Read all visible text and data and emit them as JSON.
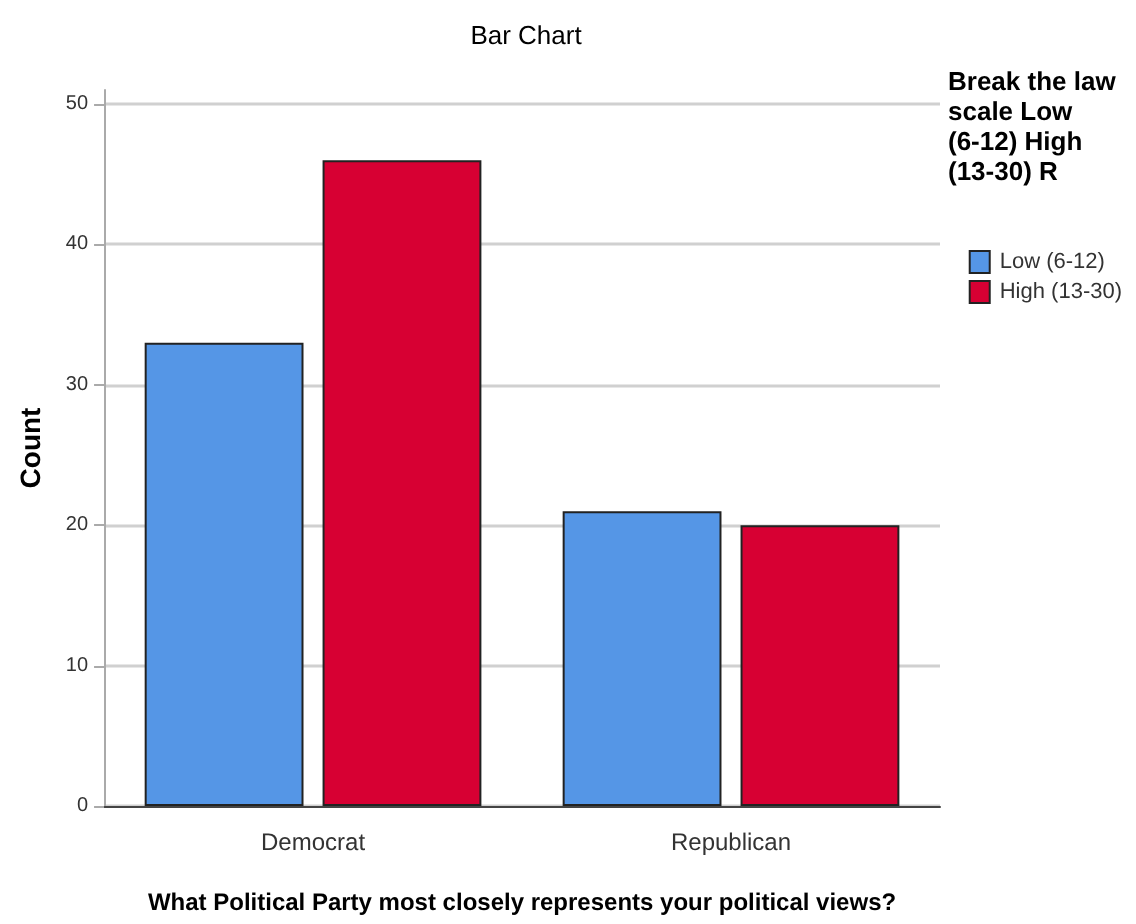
{
  "chart_data": {
    "type": "bar",
    "title": "Bar Chart",
    "xlabel": "What Political Party most closely represents your political views?",
    "ylabel": "Count",
    "legend_title": "Break the law scale Low (6-12) High (13-30) R",
    "categories": [
      "Democrat",
      "Republican"
    ],
    "series": [
      {
        "name": "Low (6-12)",
        "color": "#5596e6",
        "values": [
          33,
          21
        ]
      },
      {
        "name": "High (13-30)",
        "color": "#d70033",
        "values": [
          46,
          20
        ]
      }
    ],
    "ylim": [
      0,
      51
    ],
    "yticks": [
      0,
      10,
      20,
      30,
      40,
      50
    ],
    "grid": "y",
    "legend": "right"
  }
}
